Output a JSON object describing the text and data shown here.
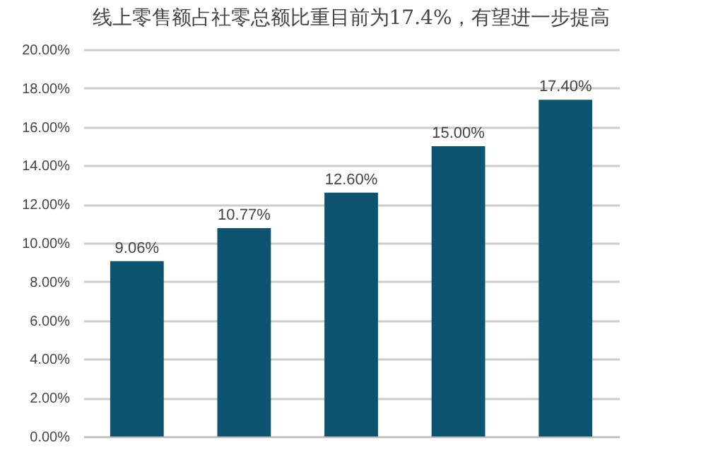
{
  "chart_data": {
    "type": "bar",
    "title": "线上零售额占社零总额比重目前为17.4%，有望进一步提高",
    "categories": [
      null,
      null,
      null,
      null,
      null
    ],
    "values": [
      9.06,
      10.77,
      12.6,
      15.0,
      17.4
    ],
    "value_labels": [
      "9.06%",
      "10.77%",
      "12.60%",
      "15.00%",
      "17.40%"
    ],
    "color": "#0d5470",
    "ylim": [
      0,
      20
    ],
    "yticks": [
      {
        "value": 0,
        "label": "0.00%"
      },
      {
        "value": 2,
        "label": "2.00%"
      },
      {
        "value": 4,
        "label": "4.00%"
      },
      {
        "value": 6,
        "label": "6.00%"
      },
      {
        "value": 8,
        "label": "8.00%"
      },
      {
        "value": 10,
        "label": "10.00%"
      },
      {
        "value": 12,
        "label": "12.00%"
      },
      {
        "value": 14,
        "label": "14.00%"
      },
      {
        "value": 16,
        "label": "16.00%"
      },
      {
        "value": 18,
        "label": "18.00%"
      },
      {
        "value": 20,
        "label": "20.00%"
      }
    ],
    "grid": "y",
    "tick_labels": "y"
  }
}
